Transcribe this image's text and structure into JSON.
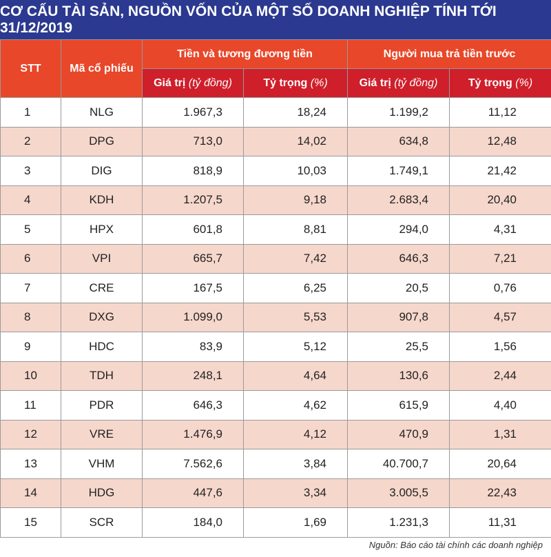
{
  "title": "CƠ CẤU TÀI SẢN, NGUỒN VỐN CỦA MỘT SỐ DOANH NGHIỆP TÍNH TỚI 31/12/2019",
  "headers": {
    "stt": "STT",
    "code": "Mã cổ phiếu",
    "group1": "Tiền và tương đương tiền",
    "group2": "Người mua trả tiền trước",
    "value": "Giá trị",
    "value_unit": "(tỷ đồng)",
    "share": "Tỷ trọng",
    "share_unit": "(%)"
  },
  "rows": [
    {
      "stt": "1",
      "code": "NLG",
      "cash_value": "1.967,3",
      "cash_share": "18,24",
      "adv_value": "1.199,2",
      "adv_share": "11,12"
    },
    {
      "stt": "2",
      "code": "DPG",
      "cash_value": "713,0",
      "cash_share": "14,02",
      "adv_value": "634,8",
      "adv_share": "12,48"
    },
    {
      "stt": "3",
      "code": "DIG",
      "cash_value": "818,9",
      "cash_share": "10,03",
      "adv_value": "1.749,1",
      "adv_share": "21,42"
    },
    {
      "stt": "4",
      "code": "KDH",
      "cash_value": "1.207,5",
      "cash_share": "9,18",
      "adv_value": "2.683,4",
      "adv_share": "20,40"
    },
    {
      "stt": "5",
      "code": "HPX",
      "cash_value": "601,8",
      "cash_share": "8,81",
      "adv_value": "294,0",
      "adv_share": "4,31"
    },
    {
      "stt": "6",
      "code": "VPI",
      "cash_value": "665,7",
      "cash_share": "7,42",
      "adv_value": "646,3",
      "adv_share": "7,21"
    },
    {
      "stt": "7",
      "code": "CRE",
      "cash_value": "167,5",
      "cash_share": "6,25",
      "adv_value": "20,5",
      "adv_share": "0,76"
    },
    {
      "stt": "8",
      "code": "DXG",
      "cash_value": "1.099,0",
      "cash_share": "5,53",
      "adv_value": "907,8",
      "adv_share": "4,57"
    },
    {
      "stt": "9",
      "code": "HDC",
      "cash_value": "83,9",
      "cash_share": "5,12",
      "adv_value": "25,5",
      "adv_share": "1,56"
    },
    {
      "stt": "10",
      "code": "TDH",
      "cash_value": "248,1",
      "cash_share": "4,64",
      "adv_value": "130,6",
      "adv_share": "2,44"
    },
    {
      "stt": "11",
      "code": "PDR",
      "cash_value": "646,3",
      "cash_share": "4,62",
      "adv_value": "615,9",
      "adv_share": "4,40"
    },
    {
      "stt": "12",
      "code": "VRE",
      "cash_value": "1.476,9",
      "cash_share": "4,12",
      "adv_value": "470,9",
      "adv_share": "1,31"
    },
    {
      "stt": "13",
      "code": "VHM",
      "cash_value": "7.562,6",
      "cash_share": "3,84",
      "adv_value": "40.700,7",
      "adv_share": "20,64"
    },
    {
      "stt": "14",
      "code": "HDG",
      "cash_value": "447,6",
      "cash_share": "3,34",
      "adv_value": "3.005,5",
      "adv_share": "22,43"
    },
    {
      "stt": "15",
      "code": "SCR",
      "cash_value": "184,0",
      "cash_share": "1,69",
      "adv_value": "1.231,3",
      "adv_share": "11,31"
    }
  ],
  "source": "Nguồn: Báo cáo tài chính các doanh nghiệp",
  "colors": {
    "title_bg": "#2b3990",
    "header_orange": "#e8472a",
    "header_red": "#cf1f2a",
    "row_alt": "#f6d7cc"
  }
}
